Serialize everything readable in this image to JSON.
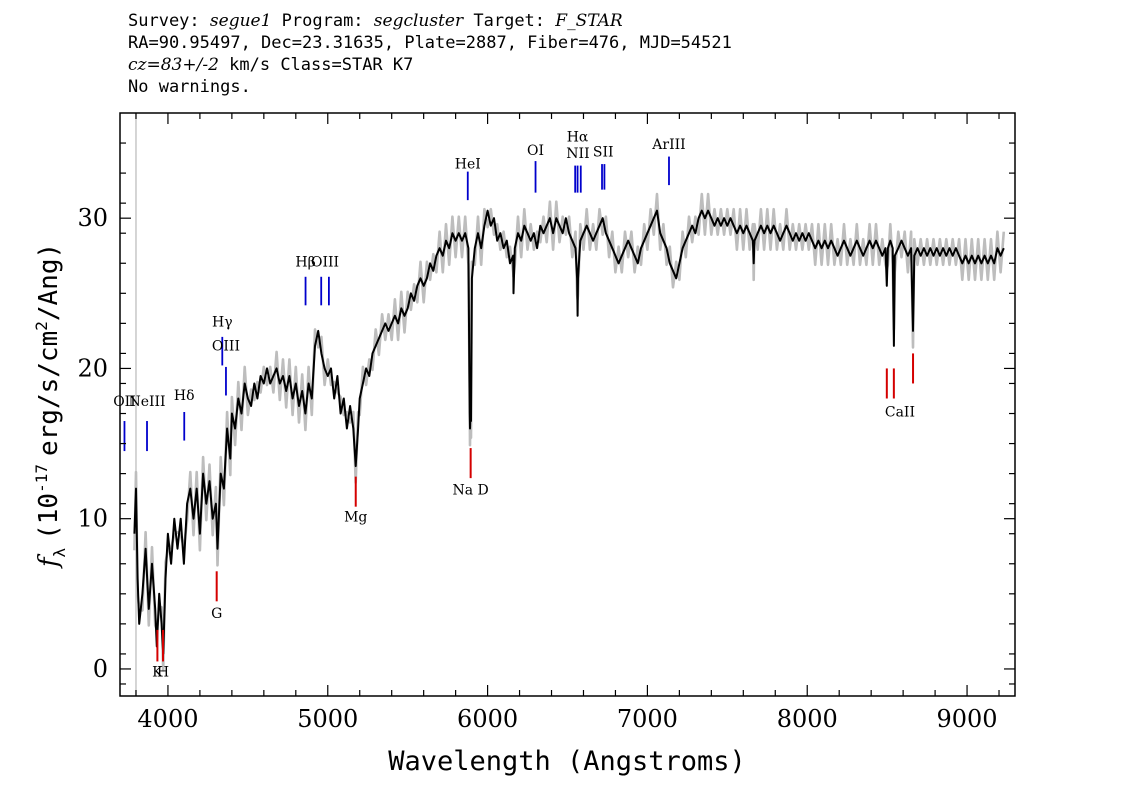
{
  "header": {
    "survey_label": "Survey:",
    "survey_value": "segue1",
    "program_label": "Program:",
    "program_value": "segcluster",
    "target_label": "Target:",
    "target_value": "F_STAR",
    "line2": "RA=90.95497, Dec=23.31635, Plate=2887, Fiber=476, MJD=54521",
    "cz_value": "cz=83+/-2",
    "cz_rest": "km/s Class=STAR K7",
    "line4": "No warnings."
  },
  "chart_data": {
    "type": "line",
    "xlabel": "Wavelength (Angstroms)",
    "ylabel_f": "f",
    "ylabel_sub": "λ",
    "ylabel_pre": "(10",
    "ylabel_exp": "-17",
    "ylabel_post": "erg/s/cm",
    "ylabel_exp2": "2",
    "ylabel_end": "/Ang)",
    "xlim": [
      3700,
      9300
    ],
    "ylim": [
      -1.8,
      37
    ],
    "xticks": [
      4000,
      5000,
      6000,
      7000,
      8000,
      9000
    ],
    "yticks": [
      0,
      10,
      20,
      30
    ],
    "spectrum": [
      [
        3790,
        9
      ],
      [
        3800,
        12
      ],
      [
        3810,
        6
      ],
      [
        3820,
        3
      ],
      [
        3840,
        5
      ],
      [
        3860,
        8
      ],
      [
        3880,
        4
      ],
      [
        3900,
        7
      ],
      [
        3920,
        4
      ],
      [
        3930,
        1.5
      ],
      [
        3945,
        5
      ],
      [
        3960,
        3
      ],
      [
        3970,
        1
      ],
      [
        3985,
        6
      ],
      [
        4000,
        9
      ],
      [
        4020,
        7
      ],
      [
        4040,
        10
      ],
      [
        4060,
        8
      ],
      [
        4080,
        10
      ],
      [
        4100,
        7
      ],
      [
        4120,
        11
      ],
      [
        4140,
        12
      ],
      [
        4160,
        10
      ],
      [
        4180,
        12
      ],
      [
        4200,
        9
      ],
      [
        4220,
        13
      ],
      [
        4240,
        11
      ],
      [
        4260,
        12.5
      ],
      [
        4280,
        10
      ],
      [
        4300,
        11
      ],
      [
        4310,
        8
      ],
      [
        4330,
        13
      ],
      [
        4350,
        12
      ],
      [
        4370,
        16
      ],
      [
        4390,
        14
      ],
      [
        4400,
        17
      ],
      [
        4420,
        16
      ],
      [
        4440,
        18
      ],
      [
        4460,
        17
      ],
      [
        4480,
        19
      ],
      [
        4500,
        18
      ],
      [
        4520,
        17.5
      ],
      [
        4540,
        19
      ],
      [
        4560,
        18
      ],
      [
        4580,
        19.5
      ],
      [
        4600,
        19
      ],
      [
        4620,
        20
      ],
      [
        4640,
        19
      ],
      [
        4660,
        19.5
      ],
      [
        4680,
        20
      ],
      [
        4700,
        19
      ],
      [
        4720,
        19.5
      ],
      [
        4740,
        18.5
      ],
      [
        4760,
        19.5
      ],
      [
        4780,
        18
      ],
      [
        4800,
        19
      ],
      [
        4820,
        17.5
      ],
      [
        4840,
        18.5
      ],
      [
        4860,
        17
      ],
      [
        4880,
        19
      ],
      [
        4900,
        18
      ],
      [
        4920,
        21.5
      ],
      [
        4940,
        22.5
      ],
      [
        4960,
        21
      ],
      [
        4980,
        20
      ],
      [
        5000,
        19.5
      ],
      [
        5020,
        20
      ],
      [
        5040,
        18
      ],
      [
        5060,
        19.5
      ],
      [
        5080,
        17
      ],
      [
        5100,
        18
      ],
      [
        5120,
        16
      ],
      [
        5140,
        17.5
      ],
      [
        5160,
        16
      ],
      [
        5175,
        13.5
      ],
      [
        5190,
        16
      ],
      [
        5200,
        18
      ],
      [
        5220,
        19
      ],
      [
        5240,
        20
      ],
      [
        5260,
        19.5
      ],
      [
        5280,
        21
      ],
      [
        5300,
        21.5
      ],
      [
        5320,
        22
      ],
      [
        5340,
        22.5
      ],
      [
        5360,
        23
      ],
      [
        5380,
        22.5
      ],
      [
        5400,
        23
      ],
      [
        5420,
        23.5
      ],
      [
        5440,
        23
      ],
      [
        5460,
        24
      ],
      [
        5480,
        23.5
      ],
      [
        5500,
        24
      ],
      [
        5520,
        25
      ],
      [
        5540,
        24.5
      ],
      [
        5560,
        25.5
      ],
      [
        5580,
        26
      ],
      [
        5600,
        25.5
      ],
      [
        5620,
        26
      ],
      [
        5640,
        27
      ],
      [
        5660,
        26.5
      ],
      [
        5680,
        27.5
      ],
      [
        5700,
        28
      ],
      [
        5720,
        27.5
      ],
      [
        5740,
        28.5
      ],
      [
        5760,
        28
      ],
      [
        5780,
        29
      ],
      [
        5800,
        28.5
      ],
      [
        5820,
        29
      ],
      [
        5840,
        28.5
      ],
      [
        5860,
        29
      ],
      [
        5880,
        28
      ],
      [
        5888,
        17
      ],
      [
        5890,
        16
      ],
      [
        5894,
        17.5
      ],
      [
        5896,
        16.5
      ],
      [
        5902,
        26
      ],
      [
        5920,
        28
      ],
      [
        5940,
        29
      ],
      [
        5960,
        28
      ],
      [
        5980,
        29.5
      ],
      [
        6000,
        30.5
      ],
      [
        6020,
        29.5
      ],
      [
        6040,
        30
      ],
      [
        6060,
        28.5
      ],
      [
        6080,
        29
      ],
      [
        6100,
        28
      ],
      [
        6120,
        28.5
      ],
      [
        6140,
        27
      ],
      [
        6160,
        27.5
      ],
      [
        6162,
        25
      ],
      [
        6170,
        28
      ],
      [
        6190,
        29
      ],
      [
        6210,
        28.5
      ],
      [
        6230,
        29.5
      ],
      [
        6250,
        29
      ],
      [
        6270,
        28.5
      ],
      [
        6290,
        29
      ],
      [
        6310,
        28
      ],
      [
        6330,
        29.5
      ],
      [
        6350,
        29
      ],
      [
        6370,
        29.5
      ],
      [
        6390,
        30
      ],
      [
        6410,
        29
      ],
      [
        6430,
        30
      ],
      [
        6450,
        29.5
      ],
      [
        6470,
        29
      ],
      [
        6490,
        30
      ],
      [
        6510,
        29
      ],
      [
        6530,
        28.5
      ],
      [
        6550,
        28
      ],
      [
        6560,
        26
      ],
      [
        6563,
        23.5
      ],
      [
        6566,
        26
      ],
      [
        6580,
        28.5
      ],
      [
        6600,
        29
      ],
      [
        6620,
        29.5
      ],
      [
        6640,
        29
      ],
      [
        6660,
        28.5
      ],
      [
        6680,
        29
      ],
      [
        6700,
        29.5
      ],
      [
        6720,
        30
      ],
      [
        6740,
        29
      ],
      [
        6760,
        28.5
      ],
      [
        6780,
        28
      ],
      [
        6800,
        27.5
      ],
      [
        6820,
        27
      ],
      [
        6840,
        27.5
      ],
      [
        6860,
        28
      ],
      [
        6880,
        28.5
      ],
      [
        6900,
        28
      ],
      [
        6920,
        27.5
      ],
      [
        6940,
        27
      ],
      [
        6960,
        28
      ],
      [
        6980,
        28.5
      ],
      [
        7000,
        29
      ],
      [
        7020,
        29.5
      ],
      [
        7040,
        30
      ],
      [
        7060,
        30.5
      ],
      [
        7080,
        29
      ],
      [
        7100,
        28.5
      ],
      [
        7120,
        28
      ],
      [
        7140,
        27
      ],
      [
        7160,
        26.5
      ],
      [
        7180,
        26
      ],
      [
        7200,
        27
      ],
      [
        7220,
        28
      ],
      [
        7240,
        28.5
      ],
      [
        7260,
        29
      ],
      [
        7280,
        29.5
      ],
      [
        7300,
        29
      ],
      [
        7320,
        30
      ],
      [
        7340,
        30.5
      ],
      [
        7360,
        30
      ],
      [
        7380,
        30.5
      ],
      [
        7400,
        30
      ],
      [
        7420,
        29.5
      ],
      [
        7440,
        30
      ],
      [
        7460,
        29.5
      ],
      [
        7480,
        30
      ],
      [
        7500,
        29.5
      ],
      [
        7520,
        30
      ],
      [
        7540,
        29.5
      ],
      [
        7560,
        29
      ],
      [
        7580,
        29.5
      ],
      [
        7600,
        29
      ],
      [
        7620,
        29.5
      ],
      [
        7640,
        29
      ],
      [
        7660,
        28.5
      ],
      [
        7665,
        27
      ],
      [
        7670,
        28.5
      ],
      [
        7690,
        29
      ],
      [
        7710,
        29.5
      ],
      [
        7730,
        29
      ],
      [
        7750,
        29.5
      ],
      [
        7770,
        29
      ],
      [
        7790,
        29.5
      ],
      [
        7810,
        29
      ],
      [
        7830,
        28.5
      ],
      [
        7850,
        29
      ],
      [
        7870,
        29.5
      ],
      [
        7890,
        29
      ],
      [
        7910,
        28.5
      ],
      [
        7930,
        29
      ],
      [
        7950,
        28.5
      ],
      [
        7970,
        29
      ],
      [
        7990,
        28.5
      ],
      [
        8010,
        29
      ],
      [
        8030,
        28.5
      ],
      [
        8050,
        28
      ],
      [
        8070,
        28.5
      ],
      [
        8090,
        28
      ],
      [
        8110,
        28.5
      ],
      [
        8130,
        28
      ],
      [
        8150,
        28.5
      ],
      [
        8170,
        28
      ],
      [
        8190,
        27.5
      ],
      [
        8210,
        28
      ],
      [
        8230,
        28.5
      ],
      [
        8250,
        28
      ],
      [
        8270,
        27.5
      ],
      [
        8290,
        28
      ],
      [
        8310,
        28.5
      ],
      [
        8330,
        28
      ],
      [
        8350,
        27.5
      ],
      [
        8370,
        28
      ],
      [
        8390,
        28.5
      ],
      [
        8410,
        28
      ],
      [
        8430,
        28.5
      ],
      [
        8450,
        28
      ],
      [
        8470,
        27.5
      ],
      [
        8490,
        28
      ],
      [
        8498,
        25.5
      ],
      [
        8505,
        28
      ],
      [
        8520,
        28.5
      ],
      [
        8535,
        28
      ],
      [
        8542,
        21.5
      ],
      [
        8548,
        27.5
      ],
      [
        8570,
        28
      ],
      [
        8590,
        28.5
      ],
      [
        8610,
        28
      ],
      [
        8630,
        27.5
      ],
      [
        8650,
        28
      ],
      [
        8662,
        22.5
      ],
      [
        8670,
        27.5
      ],
      [
        8690,
        28
      ],
      [
        8710,
        27.5
      ],
      [
        8730,
        28
      ],
      [
        8750,
        27.5
      ],
      [
        8770,
        28
      ],
      [
        8790,
        27.5
      ],
      [
        8810,
        28
      ],
      [
        8830,
        27.5
      ],
      [
        8850,
        28
      ],
      [
        8870,
        27.5
      ],
      [
        8890,
        28
      ],
      [
        8910,
        27.5
      ],
      [
        8930,
        28
      ],
      [
        8950,
        27.5
      ],
      [
        8970,
        27
      ],
      [
        8990,
        27.5
      ],
      [
        9010,
        27
      ],
      [
        9030,
        27.5
      ],
      [
        9050,
        27
      ],
      [
        9070,
        27.5
      ],
      [
        9090,
        27
      ],
      [
        9110,
        27.5
      ],
      [
        9130,
        27
      ],
      [
        9150,
        27.5
      ],
      [
        9170,
        27
      ],
      [
        9190,
        28
      ],
      [
        9210,
        27.5
      ],
      [
        9230,
        28
      ]
    ],
    "emission_lines": [
      {
        "label": "OII",
        "wave": 3728,
        "label_y": 17.5,
        "y0": 14.5,
        "y1": 16.5
      },
      {
        "label": "NeIII",
        "wave": 3869,
        "label_y": 17.5,
        "y0": 14.5,
        "y1": 16.5
      },
      {
        "label": "Hδ",
        "wave": 4102,
        "label_y": 17.9,
        "y0": 15.2,
        "y1": 17.1
      },
      {
        "label": "Hγ",
        "wave": 4340,
        "label_y": 22.8,
        "y0": 20.2,
        "y1": 22.1
      },
      {
        "label": "OIII",
        "wave": 4363,
        "label_y": 21.2,
        "y0": 18.2,
        "y1": 20.1
      },
      {
        "label": "Hβ",
        "wave": 4861,
        "label_y": 26.8,
        "y0": 24.2,
        "y1": 26.1
      },
      {
        "label": "OIII",
        "wave": 4959,
        "label_y": 26.8,
        "y0": 24.2,
        "y1": 26.1
      },
      {
        "label": "OIII",
        "wave": 5007,
        "label_y": 26.8,
        "y0": 24.2,
        "y1": 26.1
      },
      {
        "label": "HeI",
        "wave": 5876,
        "label_y": 33.3,
        "y0": 31.2,
        "y1": 33.1
      },
      {
        "label": "OI",
        "wave": 6300,
        "label_y": 34.2,
        "y0": 31.7,
        "y1": 33.8
      },
      {
        "label": "NII",
        "wave": 6548,
        "label_y": 34.0,
        "y0": 31.7,
        "y1": 33.5
      },
      {
        "label": "Hα",
        "wave": 6563,
        "label_y": 35.1,
        "y0": 31.7,
        "y1": 33.5
      },
      {
        "label": "NII",
        "wave": 6583,
        "label_y": 34.0,
        "y0": 31.7,
        "y1": 33.5
      },
      {
        "label": "SII",
        "wave": 6716,
        "label_y": 34.1,
        "y0": 31.9,
        "y1": 33.6
      },
      {
        "label": "SII",
        "wave": 6731,
        "label_y": 34.1,
        "y0": 31.9,
        "y1": 33.6
      },
      {
        "label": "ArIII",
        "wave": 7135,
        "label_y": 34.6,
        "y0": 32.2,
        "y1": 34.1
      }
    ],
    "absorption_lines": [
      {
        "label": "K",
        "wave": 3934,
        "label_y": -0.5,
        "y0": 0.5,
        "y1": 2.6
      },
      {
        "label": "H",
        "wave": 3969,
        "label_y": -0.5,
        "y0": 0.5,
        "y1": 2.6
      },
      {
        "label": "G",
        "wave": 4305,
        "label_y": 3.4,
        "y0": 4.5,
        "y1": 6.5
      },
      {
        "label": "Mg",
        "wave": 5175,
        "label_y": 9.8,
        "y0": 10.8,
        "y1": 12.8
      },
      {
        "label": "Na D",
        "wave": 5894,
        "label_y": 11.6,
        "y0": 12.7,
        "y1": 14.7
      },
      {
        "label": "CaII",
        "wave": 8498,
        "label_y": 16.8,
        "y0": 18.0,
        "y1": 20.0
      },
      {
        "label": "CaII",
        "wave": 8542,
        "label_y": 16.8,
        "y0": 18.0,
        "y1": 20.0
      },
      {
        "label": "CaII",
        "wave": 8662,
        "label_y": 16.8,
        "y0": 19.0,
        "y1": 21.0
      }
    ],
    "colors": {
      "flux": "#000000",
      "error": "#bdbdbd",
      "emission": "#0000cc",
      "absorption": "#d40000"
    }
  }
}
